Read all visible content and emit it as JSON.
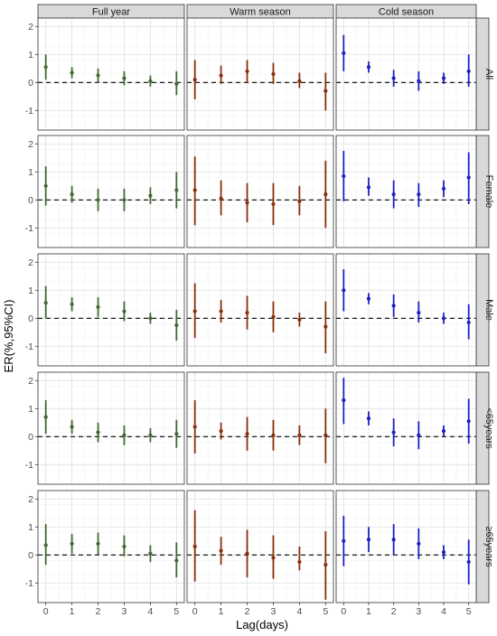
{
  "chart_data": {
    "type": "scatter",
    "subtype": "faceted point-range (estimate with 95% CI error bars)",
    "xlabel": "Lag(days)",
    "ylabel": "ER(%,95%CI)",
    "x": [
      0,
      1,
      2,
      3,
      4,
      5
    ],
    "xlim": [
      -0.3,
      5.3
    ],
    "ylim": [
      -1.7,
      2.3
    ],
    "yticks": [
      -1,
      0,
      1,
      2
    ],
    "reference_line": {
      "y": 0,
      "style": "dashed"
    },
    "grid": true,
    "columns": [
      {
        "label": "Full year",
        "color": "#3d6b2e"
      },
      {
        "label": "Warm season",
        "color": "#8b2d0a"
      },
      {
        "label": "Cold season",
        "color": "#1f1fbf"
      }
    ],
    "rows": [
      {
        "label": "All"
      },
      {
        "label": "Female"
      },
      {
        "label": "Male"
      },
      {
        "label": "<65years"
      },
      {
        "label": "≥65years"
      }
    ],
    "panels": [
      [
        {
          "est": [
            0.55,
            0.35,
            0.25,
            0.15,
            0.05,
            -0.05
          ],
          "lo": [
            0.1,
            0.15,
            0.0,
            -0.1,
            -0.15,
            -0.45
          ],
          "hi": [
            1.0,
            0.55,
            0.5,
            0.4,
            0.25,
            0.4
          ]
        },
        {
          "est": [
            0.5,
            0.2,
            0.0,
            0.0,
            0.15,
            0.35
          ],
          "lo": [
            -0.2,
            -0.1,
            -0.4,
            -0.4,
            -0.15,
            -0.3
          ],
          "hi": [
            1.2,
            0.5,
            0.4,
            0.4,
            0.45,
            1.0
          ]
        },
        {
          "est": [
            0.55,
            0.5,
            0.4,
            0.25,
            0.0,
            -0.25
          ],
          "lo": [
            0.0,
            0.25,
            0.05,
            -0.1,
            -0.2,
            -0.8
          ],
          "hi": [
            1.15,
            0.75,
            0.75,
            0.6,
            0.2,
            0.3
          ]
        },
        {
          "est": [
            0.7,
            0.35,
            0.15,
            0.05,
            0.05,
            0.1
          ],
          "lo": [
            0.1,
            0.1,
            -0.2,
            -0.3,
            -0.2,
            -0.4
          ],
          "hi": [
            1.3,
            0.6,
            0.5,
            0.4,
            0.3,
            0.6
          ]
        },
        {
          "est": [
            0.35,
            0.4,
            0.4,
            0.3,
            0.05,
            -0.2
          ],
          "lo": [
            -0.35,
            0.05,
            0.0,
            -0.05,
            -0.25,
            -0.8
          ],
          "hi": [
            1.1,
            0.75,
            0.8,
            0.7,
            0.35,
            0.45
          ]
        }
      ],
      [
        {
          "est": [
            0.1,
            0.25,
            0.4,
            0.3,
            0.05,
            -0.3
          ],
          "lo": [
            -0.6,
            -0.05,
            0.0,
            -0.05,
            -0.2,
            -1.0
          ],
          "hi": [
            0.8,
            0.6,
            0.8,
            0.7,
            0.35,
            0.35
          ]
        },
        {
          "est": [
            0.35,
            0.05,
            -0.1,
            -0.15,
            -0.05,
            0.2
          ],
          "lo": [
            -0.9,
            -0.55,
            -0.8,
            -0.9,
            -0.55,
            -1.0
          ],
          "hi": [
            1.55,
            0.7,
            0.6,
            0.6,
            0.5,
            1.4
          ]
        },
        {
          "est": [
            0.25,
            0.25,
            0.2,
            0.05,
            -0.05,
            -0.3
          ],
          "lo": [
            -0.7,
            -0.15,
            -0.4,
            -0.5,
            -0.3,
            -1.25
          ],
          "hi": [
            1.25,
            0.65,
            0.8,
            0.6,
            0.2,
            0.6
          ]
        },
        {
          "est": [
            0.35,
            0.2,
            0.1,
            0.05,
            0.05,
            0.05
          ],
          "lo": [
            -0.6,
            -0.1,
            -0.5,
            -0.5,
            -0.3,
            -0.95
          ],
          "hi": [
            1.3,
            0.5,
            0.7,
            0.6,
            0.4,
            1.0
          ]
        },
        {
          "est": [
            0.3,
            0.15,
            0.05,
            -0.1,
            -0.25,
            -0.35
          ],
          "lo": [
            -0.95,
            -0.35,
            -0.8,
            -0.85,
            -0.55,
            -1.6
          ],
          "hi": [
            1.6,
            0.65,
            0.9,
            0.7,
            0.3,
            0.85
          ]
        }
      ],
      [
        {
          "est": [
            1.05,
            0.55,
            0.15,
            0.05,
            0.15,
            0.4
          ],
          "lo": [
            0.4,
            0.35,
            -0.15,
            -0.3,
            -0.05,
            -0.15
          ],
          "hi": [
            1.7,
            0.75,
            0.45,
            0.4,
            0.35,
            1.0
          ]
        },
        {
          "est": [
            0.85,
            0.45,
            0.2,
            0.2,
            0.4,
            0.8
          ],
          "lo": [
            -0.05,
            0.15,
            -0.3,
            -0.25,
            0.1,
            -0.15
          ],
          "hi": [
            1.75,
            0.8,
            0.7,
            0.6,
            0.7,
            1.7
          ]
        },
        {
          "est": [
            1.0,
            0.7,
            0.45,
            0.2,
            0.0,
            -0.15
          ],
          "lo": [
            0.25,
            0.5,
            0.05,
            -0.15,
            -0.2,
            -0.75
          ],
          "hi": [
            1.75,
            0.9,
            0.85,
            0.6,
            0.2,
            0.5
          ]
        },
        {
          "est": [
            1.3,
            0.65,
            0.15,
            0.05,
            0.2,
            0.55
          ],
          "lo": [
            0.45,
            0.4,
            -0.35,
            -0.45,
            0.0,
            -0.25
          ],
          "hi": [
            2.1,
            0.9,
            0.65,
            0.55,
            0.4,
            1.35
          ]
        },
        {
          "est": [
            0.5,
            0.55,
            0.55,
            0.4,
            0.1,
            -0.25
          ],
          "lo": [
            -0.4,
            0.1,
            0.0,
            -0.15,
            -0.15,
            -1.05
          ],
          "hi": [
            1.4,
            1.0,
            1.1,
            0.95,
            0.35,
            0.55
          ]
        }
      ]
    ]
  }
}
